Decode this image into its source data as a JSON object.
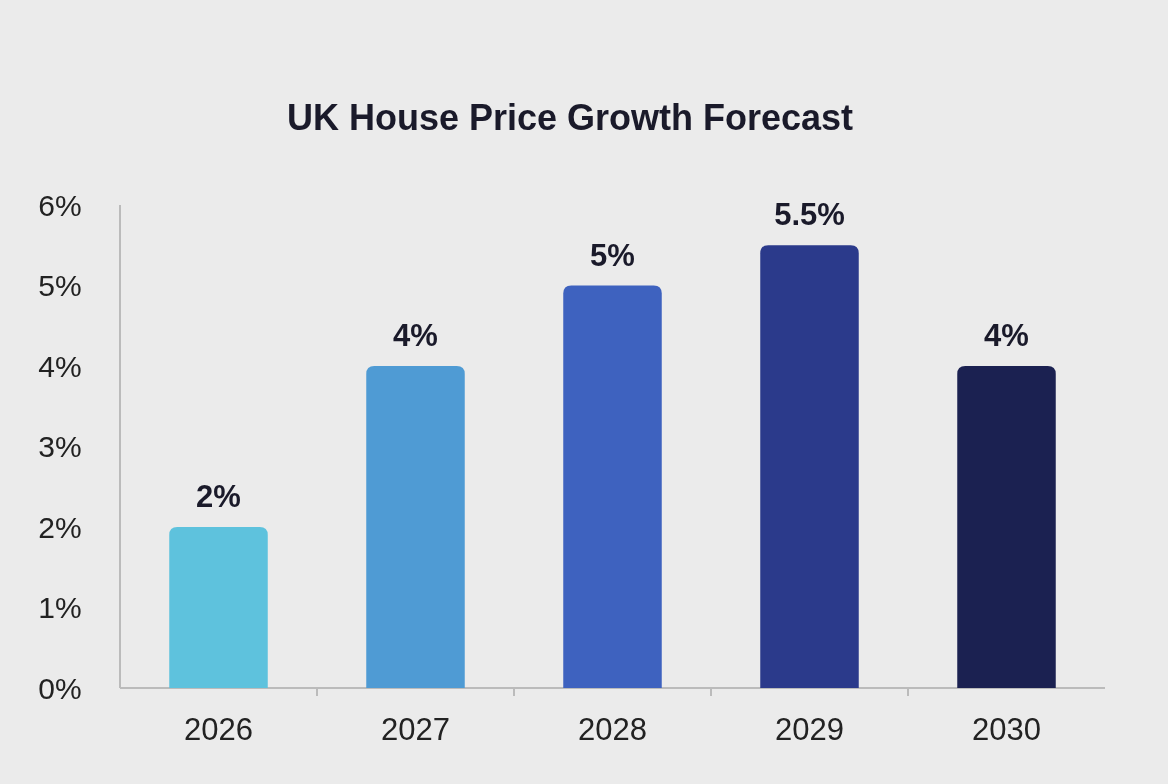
{
  "chart_data": {
    "type": "bar",
    "title": "UK House Price Growth Forecast",
    "categories": [
      "2026",
      "2027",
      "2028",
      "2029",
      "2030"
    ],
    "values": [
      2,
      4,
      5,
      5.5,
      4
    ],
    "colors": [
      "#5ec2dd",
      "#4f9bd4",
      "#3e62bf",
      "#2b3a8b",
      "#1b2151"
    ],
    "value_labels": [
      "2%",
      "4%",
      "5%",
      "5.5%",
      "4%"
    ],
    "ylim": [
      0,
      6
    ],
    "yticks": [
      {
        "value": 0,
        "label": "0%"
      },
      {
        "value": 1,
        "label": "1%"
      },
      {
        "value": 2,
        "label": "2%"
      },
      {
        "value": 3,
        "label": "3%"
      },
      {
        "value": 4,
        "label": "4%"
      },
      {
        "value": 5,
        "label": "5%"
      },
      {
        "value": 6,
        "label": "6%"
      }
    ],
    "grid": false
  }
}
